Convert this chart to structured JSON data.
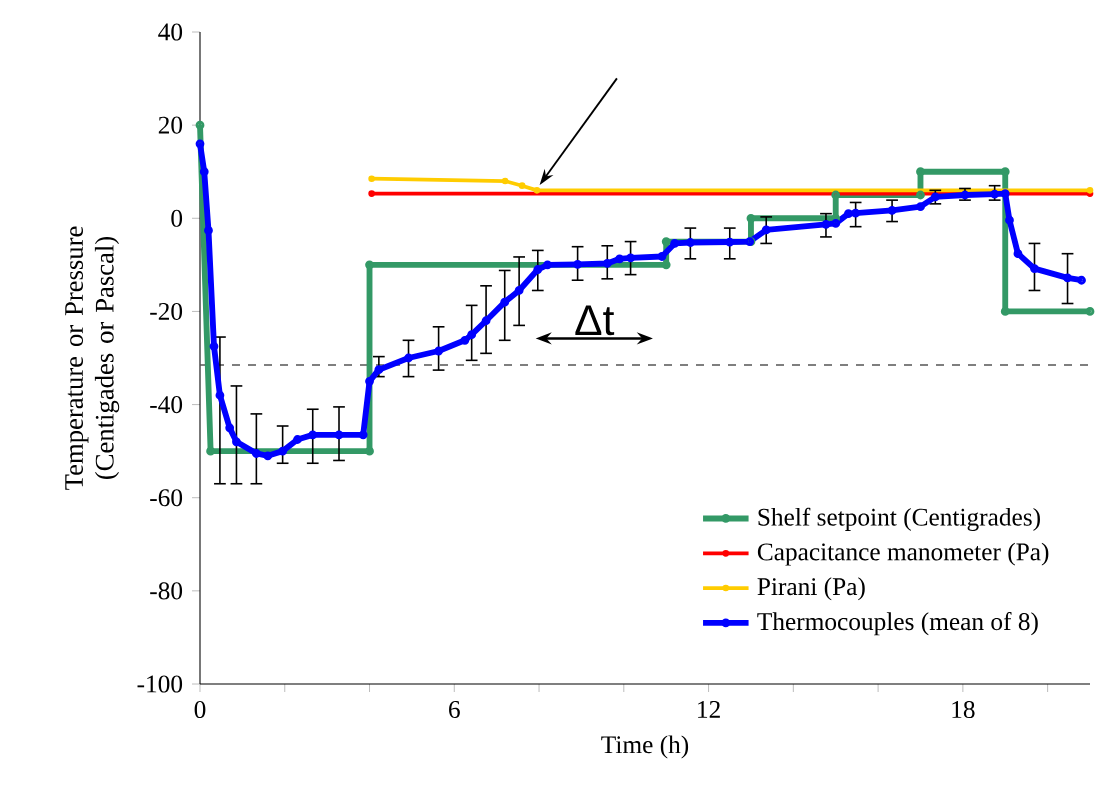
{
  "chart_data": {
    "type": "line",
    "xlabel": "Time (h)",
    "ylabel": "Temperature or Pressure (Centigades or Pascal)",
    "xlim": [
      0,
      21
    ],
    "ylim": [
      -100,
      40
    ],
    "xticks": [
      0,
      {
        "value": 2,
        "label": null
      },
      {
        "value": 4,
        "label": null
      },
      6,
      {
        "value": 8,
        "label": null
      },
      {
        "value": 10,
        "label": null
      },
      12,
      {
        "value": 14,
        "label": null
      },
      {
        "value": 16,
        "label": null
      },
      18,
      {
        "value": 20,
        "label": null
      }
    ],
    "yticks": [
      -100,
      -80,
      -60,
      -40,
      -20,
      0,
      20,
      40
    ],
    "marker": "circle",
    "legend": "bottom right",
    "ref_lines": [
      {
        "axis": "y",
        "value": -31.5,
        "color": "#555555",
        "line_style": "dashed"
      }
    ],
    "annotations": [
      "Δt"
    ],
    "series": [
      {
        "name": "Shelf setpoint (Centigrades)",
        "color": "#339966",
        "x": [
          0,
          0.25,
          4,
          4,
          11,
          11,
          13,
          13,
          15,
          15,
          17,
          17,
          19,
          19,
          21
        ],
        "values": [
          20,
          -50,
          -50,
          -10,
          -10,
          -5,
          -5,
          0,
          0,
          5,
          5,
          10,
          10,
          -20,
          -20
        ]
      },
      {
        "name": "Capacitance manometer (Pa)",
        "color": "#ff0000",
        "x": [
          4.05,
          21
        ],
        "values": [
          5.3,
          5.3
        ]
      },
      {
        "name": "Pirani (Pa)",
        "color": "#ffcc00",
        "x": [
          4.05,
          7.2,
          7.6,
          7.95,
          21
        ],
        "values": [
          8.5,
          8,
          7,
          6,
          6
        ]
      },
      {
        "name": "Thermocouples (mean of 8)",
        "color": "#0000ff",
        "x": [
          0,
          0.1,
          0.2,
          0.33,
          0.47,
          0.7,
          0.86,
          1.33,
          1.6,
          1.95,
          2.3,
          2.66,
          3.28,
          3.85,
          4.0,
          4.22,
          4.92,
          5.63,
          6.25,
          6.41,
          6.75,
          7.19,
          7.53,
          7.97,
          8.2,
          8.91,
          9.61,
          9.9,
          10.16,
          10.9,
          11.2,
          11.57,
          12.5,
          12.97,
          13.36,
          14.77,
          15.0,
          15.3,
          15.47,
          16.33,
          17.0,
          17.35,
          18.05,
          18.75,
          19.0,
          19.1,
          19.3,
          19.69,
          20.47,
          20.8
        ],
        "values": [
          16,
          10,
          -2.6,
          -27.5,
          -38,
          -45,
          -48,
          -50.5,
          -51,
          -50,
          -47.5,
          -46.5,
          -46.5,
          -46.5,
          -35,
          -32.5,
          -30,
          -28.5,
          -26.2,
          -25,
          -22,
          -18,
          -15.5,
          -11,
          -10,
          -9.9,
          -9.7,
          -8.7,
          -8.5,
          -8.2,
          -5.4,
          -5.2,
          -5.1,
          -5,
          -2.5,
          -1.3,
          -1.1,
          1,
          1.1,
          1.7,
          2.5,
          4.6,
          5,
          5.2,
          5.3,
          -0.4,
          -7.6,
          -10.8,
          -12.8,
          -13.3
        ],
        "errors": [
          null,
          null,
          null,
          null,
          [
            -57,
            -25.5
          ],
          null,
          [
            -57,
            -36
          ],
          [
            -57,
            -42
          ],
          null,
          [
            -52.6,
            -44.6
          ],
          null,
          [
            -52.6,
            -41
          ],
          [
            -52,
            -40.5
          ],
          null,
          null,
          [
            -34,
            -29.7
          ],
          [
            -34,
            -26.2
          ],
          [
            -32.6,
            -23.3
          ],
          null,
          [
            -30.5,
            -18.7
          ],
          [
            -29,
            -14.5
          ],
          [
            -26.2,
            -11.2
          ],
          [
            -23,
            -8.3
          ],
          [
            -15.5,
            -6.9
          ],
          null,
          [
            -13.3,
            -6.1
          ],
          [
            -13,
            -5.9
          ],
          null,
          [
            -12.1,
            -5
          ],
          null,
          null,
          [
            -8.7,
            -2.1
          ],
          [
            -8.7,
            -2.1
          ],
          null,
          [
            -5.4,
            0.3
          ],
          [
            -4,
            1
          ],
          null,
          null,
          [
            -1.8,
            3.4
          ],
          [
            -0.7,
            3.9
          ],
          null,
          [
            3.1,
            6
          ],
          [
            3.9,
            6.4
          ],
          [
            3.9,
            7
          ],
          null,
          null,
          null,
          [
            -15.5,
            -5.4
          ],
          [
            -18.3,
            -7.6
          ],
          null
        ]
      }
    ]
  }
}
